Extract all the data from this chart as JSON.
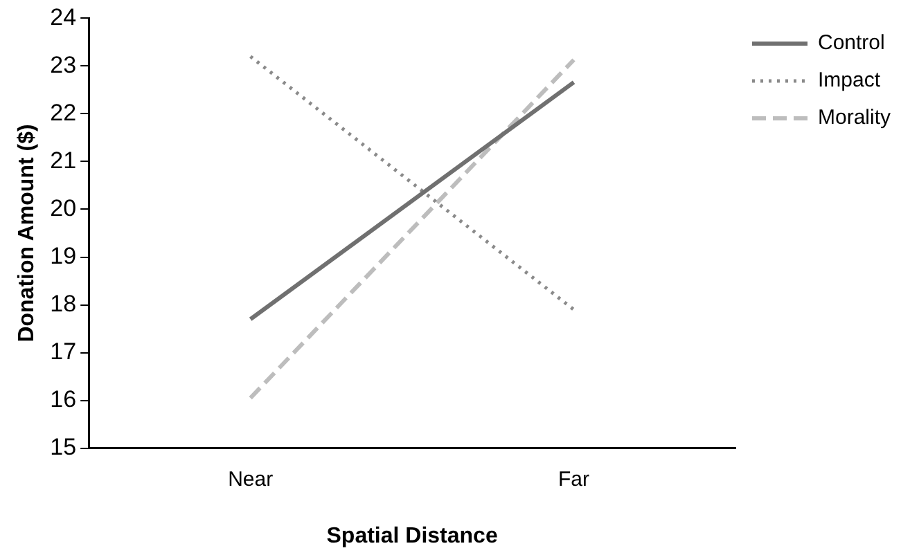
{
  "chart_data": {
    "type": "line",
    "xlabel": "Spatial Distance",
    "ylabel": "Donation Amount ($)",
    "categories": [
      "Near",
      "Far"
    ],
    "series": [
      {
        "name": "Control",
        "color": "#707070",
        "values": [
          17.7,
          22.66
        ],
        "line_style": "solid"
      },
      {
        "name": "Impact",
        "color": "#8a8a8a",
        "values": [
          23.2,
          17.9
        ],
        "line_style": "dotted"
      },
      {
        "name": "Morality",
        "color": "#bdbdbd",
        "values": [
          16.05,
          23.13
        ],
        "line_style": "dashed"
      }
    ],
    "ylim": [
      15,
      24
    ],
    "yticks": [
      15,
      16,
      17,
      18,
      19,
      20,
      21,
      22,
      23,
      24
    ],
    "grid": false,
    "legend": "top right",
    "marker": "none"
  }
}
